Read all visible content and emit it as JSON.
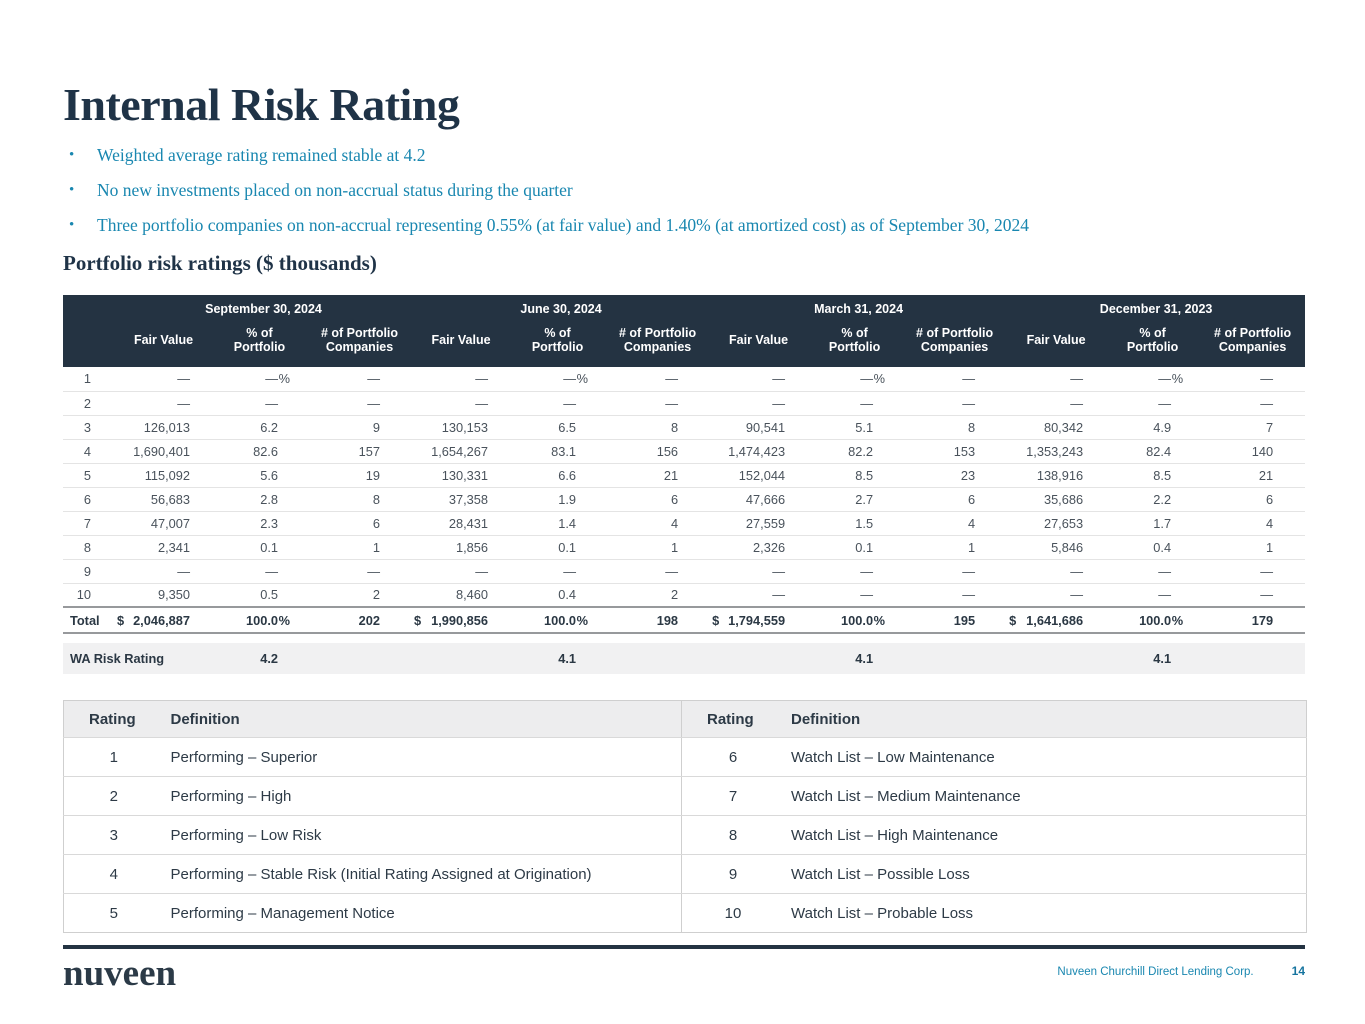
{
  "colors": {
    "navy": "#243342",
    "teal": "#1987b0",
    "title_navy": "#1f3347"
  },
  "title": "Internal Risk Rating",
  "bullets": [
    "Weighted average rating remained stable at 4.2",
    "No new investments placed on non-accrual status during the quarter",
    "Three portfolio companies on non-accrual representing 0.55% (at fair value) and 1.40% (at amortized cost) as of September 30, 2024"
  ],
  "subtitle": "Portfolio risk ratings ($ thousands)",
  "risk_table": {
    "quarters": [
      "September 30, 2024",
      "June 30, 2024",
      "March 31, 2024",
      "December 31, 2023"
    ],
    "sub_headers": [
      "Fair Value",
      "% of Portfolio",
      "# of Portfolio Companies"
    ],
    "rows": [
      {
        "rating": "1",
        "cells": [
          [
            "—",
            "— %",
            "—"
          ],
          [
            "—",
            "— %",
            "—"
          ],
          [
            "—",
            "— %",
            "—"
          ],
          [
            "—",
            "— %",
            "—"
          ]
        ]
      },
      {
        "rating": "2",
        "cells": [
          [
            "—",
            "—",
            "—"
          ],
          [
            "—",
            "—",
            "—"
          ],
          [
            "—",
            "—",
            "—"
          ],
          [
            "—",
            "—",
            "—"
          ]
        ]
      },
      {
        "rating": "3",
        "cells": [
          [
            "126,013",
            "6.2",
            "9"
          ],
          [
            "130,153",
            "6.5",
            "8"
          ],
          [
            "90,541",
            "5.1",
            "8"
          ],
          [
            "80,342",
            "4.9",
            "7"
          ]
        ]
      },
      {
        "rating": "4",
        "cells": [
          [
            "1,690,401",
            "82.6",
            "157"
          ],
          [
            "1,654,267",
            "83.1",
            "156"
          ],
          [
            "1,474,423",
            "82.2",
            "153"
          ],
          [
            "1,353,243",
            "82.4",
            "140"
          ]
        ]
      },
      {
        "rating": "5",
        "cells": [
          [
            "115,092",
            "5.6",
            "19"
          ],
          [
            "130,331",
            "6.6",
            "21"
          ],
          [
            "152,044",
            "8.5",
            "23"
          ],
          [
            "138,916",
            "8.5",
            "21"
          ]
        ]
      },
      {
        "rating": "6",
        "cells": [
          [
            "56,683",
            "2.8",
            "8"
          ],
          [
            "37,358",
            "1.9",
            "6"
          ],
          [
            "47,666",
            "2.7",
            "6"
          ],
          [
            "35,686",
            "2.2",
            "6"
          ]
        ]
      },
      {
        "rating": "7",
        "cells": [
          [
            "47,007",
            "2.3",
            "6"
          ],
          [
            "28,431",
            "1.4",
            "4"
          ],
          [
            "27,559",
            "1.5",
            "4"
          ],
          [
            "27,653",
            "1.7",
            "4"
          ]
        ]
      },
      {
        "rating": "8",
        "cells": [
          [
            "2,341",
            "0.1",
            "1"
          ],
          [
            "1,856",
            "0.1",
            "1"
          ],
          [
            "2,326",
            "0.1",
            "1"
          ],
          [
            "5,846",
            "0.4",
            "1"
          ]
        ]
      },
      {
        "rating": "9",
        "cells": [
          [
            "—",
            "—",
            "—"
          ],
          [
            "—",
            "—",
            "—"
          ],
          [
            "—",
            "—",
            "—"
          ],
          [
            "—",
            "—",
            "—"
          ]
        ]
      },
      {
        "rating": "10",
        "cells": [
          [
            "9,350",
            "0.5",
            "2"
          ],
          [
            "8,460",
            "0.4",
            "2"
          ],
          [
            "—",
            "—",
            "—"
          ],
          [
            "—",
            "—",
            "—"
          ]
        ]
      }
    ],
    "total": {
      "label": "Total",
      "currency": "$",
      "cells": [
        [
          "2,046,887",
          "100.0 %",
          "202"
        ],
        [
          "1,990,856",
          "100.0 %",
          "198"
        ],
        [
          "1,794,559",
          "100.0 %",
          "195"
        ],
        [
          "1,641,686",
          "100.0 %",
          "179"
        ]
      ]
    },
    "wa": {
      "label": "WA Risk Rating",
      "values": [
        "4.2",
        "4.1",
        "4.1",
        "4.1"
      ]
    }
  },
  "definitions": {
    "headers": [
      "Rating",
      "Definition"
    ],
    "left": [
      [
        "1",
        "Performing – Superior"
      ],
      [
        "2",
        "Performing – High"
      ],
      [
        "3",
        "Performing – Low Risk"
      ],
      [
        "4",
        "Performing – Stable Risk (Initial Rating Assigned at Origination)"
      ],
      [
        "5",
        "Performing – Management Notice"
      ]
    ],
    "right": [
      [
        "6",
        "Watch List – Low Maintenance"
      ],
      [
        "7",
        "Watch List – Medium Maintenance"
      ],
      [
        "8",
        "Watch List – High Maintenance"
      ],
      [
        "9",
        "Watch List – Possible Loss"
      ],
      [
        "10",
        "Watch List – Probable Loss"
      ]
    ]
  },
  "footer": {
    "logo": "nuveen",
    "company": "Nuveen Churchill Direct Lending Corp.",
    "page_number": "14"
  }
}
